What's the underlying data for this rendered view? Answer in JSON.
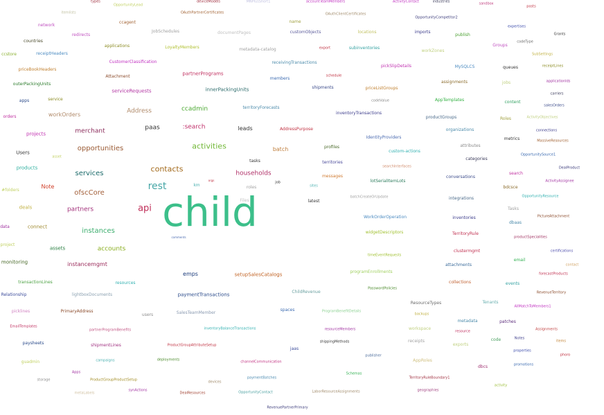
{
  "words": [
    {
      "text": "child",
      "color": "#3cbf8a"
    },
    {
      "text": "rest",
      "color": "#46a6a6"
    },
    {
      "text": "api",
      "color": "#c0305a"
    },
    {
      "text": "contacts",
      "color": "#a36a1c"
    },
    {
      "text": "activities",
      "color": "#72b838"
    },
    {
      "text": "opportunities",
      "color": "#9a5a34"
    },
    {
      "text": "services",
      "color": "#1b6a6a"
    },
    {
      "text": "ofscCore",
      "color": "#a3603a"
    },
    {
      "text": "instances",
      "color": "#3cae6e"
    },
    {
      "text": "partners",
      "color": "#a2307a"
    },
    {
      "text": "households",
      "color": "#b03068"
    },
    {
      "text": "paas",
      "color": "#333333"
    },
    {
      "text": ":search",
      "color": "#c0306a"
    },
    {
      "text": "ccadmin",
      "color": "#4aa830"
    },
    {
      "text": "merchant",
      "color": "#8a2a5a"
    },
    {
      "text": "Address",
      "color": "#b08a6a"
    },
    {
      "text": "leads",
      "color": "#333333"
    },
    {
      "text": "batch",
      "color": "#c08040"
    },
    {
      "text": "accounts",
      "color": "#8aae20"
    },
    {
      "text": "instancemgmt",
      "color": "#9a2a5a"
    },
    {
      "text": "emps",
      "color": "#1a3a7a"
    },
    {
      "text": "Note",
      "color": "#d0402a"
    },
    {
      "text": "serviceRequests",
      "color": "#b030a0"
    },
    {
      "text": "workOrders",
      "color": "#b08a6a"
    },
    {
      "text": "projects",
      "color": "#c030b0"
    },
    {
      "text": "Users",
      "color": "#333333"
    },
    {
      "text": "products",
      "color": "#30b0a0"
    },
    {
      "text": "deals",
      "color": "#c0b040"
    },
    {
      "text": "connect",
      "color": "#a08a30"
    },
    {
      "text": "assets",
      "color": "#207a3a"
    },
    {
      "text": "monitoring",
      "color": "#4a6a2a"
    },
    {
      "text": "setupSalesCatalogs",
      "color": "#c06020"
    },
    {
      "text": "paymentTransactions",
      "color": "#2a4a8a"
    },
    {
      "text": "innerPackingUnits",
      "color": "#2a6a6a"
    },
    {
      "text": "partnerPrograms",
      "color": "#c03060"
    },
    {
      "text": "CustomerClassification",
      "color": "#c030c0"
    },
    {
      "text": "applications",
      "color": "#8a8a20"
    },
    {
      "text": "LoyaltyMembers",
      "color": "#b0c030"
    },
    {
      "text": "receivingTransactions",
      "color": "#4a8aaa"
    },
    {
      "text": "shipments",
      "color": "#3a4a8a"
    },
    {
      "text": "priceListGroups",
      "color": "#c08030"
    },
    {
      "text": "pickSlipDetails",
      "color": "#c030b0"
    },
    {
      "text": "subinventories",
      "color": "#30a0a0"
    },
    {
      "text": "customObjects",
      "color": "#5a5a9a"
    },
    {
      "text": "territoryForecasts",
      "color": "#4a8aaa"
    },
    {
      "text": "inventoryTransactions",
      "color": "#3a3a8a"
    },
    {
      "text": "AddressPurpose",
      "color": "#c03040"
    },
    {
      "text": "profiles",
      "color": "#4a6a2a"
    },
    {
      "text": "territories",
      "color": "#4a4a9a"
    },
    {
      "text": "messages",
      "color": "#d07a30"
    },
    {
      "text": "lotSerialItemLots",
      "color": "#2a7a5a"
    },
    {
      "text": "searchInterfaces",
      "color": "#d08a6a"
    },
    {
      "text": "custom-actions",
      "color": "#30b0b0"
    },
    {
      "text": "IdentityProviders",
      "color": "#4a6ab0"
    },
    {
      "text": "WorkOrderOperation",
      "color": "#4a8ac0"
    },
    {
      "text": "widgetDescriptors",
      "color": "#a0c030"
    },
    {
      "text": "timeEventRequests",
      "color": "#a0c030"
    },
    {
      "text": "programEnrollments",
      "color": "#a0d060"
    },
    {
      "text": "PasswordPolicies",
      "color": "#4a8a2a"
    },
    {
      "text": "ChildRevenue",
      "color": "#6aa0a0"
    },
    {
      "text": "ProgramBenefitDetails",
      "color": "#8ad090"
    },
    {
      "text": "resourceMembers",
      "color": "#a030a0"
    },
    {
      "text": "shippingMethods",
      "color": "#333333"
    },
    {
      "text": "publisher",
      "color": "#4a6a9a"
    },
    {
      "text": "Schemas",
      "color": "#30b050"
    },
    {
      "text": "paymentBatches",
      "color": "#4a8ab0"
    },
    {
      "text": "channelCommunication",
      "color": "#c03080"
    },
    {
      "text": "deployments",
      "color": "#4a8a2a"
    },
    {
      "text": "devices",
      "color": "#a08a6a"
    },
    {
      "text": "campaigns",
      "color": "#4ab0b0"
    },
    {
      "text": "Apps",
      "color": "#a030a0"
    },
    {
      "text": "ProductGroupProductSetup",
      "color": "#a08a20"
    },
    {
      "text": "synActions",
      "color": "#a030a0"
    },
    {
      "text": "DealResources",
      "color": "#a04030"
    },
    {
      "text": "OpportunityContact",
      "color": "#4aa0a0"
    },
    {
      "text": "LaborResourceAssignments",
      "color": "#a08a6a"
    },
    {
      "text": "RevenuePartnerPrimary",
      "color": "#3a3a7a"
    },
    {
      "text": "inventoryBalanceTransactions",
      "color": "#30b0b0"
    },
    {
      "text": "ProductGroupAttributeSetup",
      "color": "#c03040"
    },
    {
      "text": "SalesTeamMember",
      "color": "#8a9ab0"
    },
    {
      "text": "users",
      "color": "#8a8a8a"
    },
    {
      "text": "PrimaryAddress",
      "color": "#8a4a2a"
    },
    {
      "text": "partnerProgramBenefits",
      "color": "#c05080"
    },
    {
      "text": "shipmentLines",
      "color": "#a03080"
    },
    {
      "text": "lightboxDocuments",
      "color": "#8aa0b0"
    },
    {
      "text": "resources",
      "color": "#30b0b0"
    },
    {
      "text": "transactionLines",
      "color": "#4aa040"
    },
    {
      "text": "Relationship",
      "color": "#3a4a9a"
    },
    {
      "text": "picklines",
      "color": "#d080c0"
    },
    {
      "text": "EmailTemplates",
      "color": "#c03060"
    },
    {
      "text": "paysheets",
      "color": "#2a4a8a"
    },
    {
      "text": "guadmin",
      "color": "#c0d060"
    },
    {
      "text": "storage",
      "color": "#8a8a8a"
    },
    {
      "text": "metaLabels",
      "color": "#d0c0a0"
    },
    {
      "text": "spaces",
      "color": "#3a6ab0"
    },
    {
      "text": "jaas",
      "color": "#3a4a9a"
    },
    {
      "text": "ResourceTypes",
      "color": "#6a6a6a"
    },
    {
      "text": "backups",
      "color": "#c0b040"
    },
    {
      "text": "workspace",
      "color": "#c0d080"
    },
    {
      "text": "receipts",
      "color": "#a0a0a0"
    },
    {
      "text": "AppRoles",
      "color": "#d0c080"
    },
    {
      "text": "TerritoryRuleBoundary1",
      "color": "#a03040"
    },
    {
      "text": "geographies",
      "color": "#a04080"
    },
    {
      "text": "exports",
      "color": "#c0d080"
    },
    {
      "text": "metadata",
      "color": "#4a8aaa"
    },
    {
      "text": "Tenants",
      "color": "#6ab0b0"
    },
    {
      "text": "resource",
      "color": "#c03060"
    },
    {
      "text": "code",
      "color": "#4aa060"
    },
    {
      "text": "dbcs",
      "color": "#a03070"
    },
    {
      "text": "patches",
      "color": "#5a2a7a"
    },
    {
      "text": "Notes",
      "color": "#3a3a8a"
    },
    {
      "text": "properties",
      "color": "#3a4aaa"
    },
    {
      "text": "promotions",
      "color": "#3a6ab0"
    },
    {
      "text": "activity",
      "color": "#a0c040"
    },
    {
      "text": "Assignments",
      "color": "#c04040"
    },
    {
      "text": "items",
      "color": "#c08030"
    },
    {
      "text": "phoro",
      "color": "#c03040"
    },
    {
      "text": "collections",
      "color": "#c06030"
    },
    {
      "text": "events",
      "color": "#30a0a0"
    },
    {
      "text": "attachments",
      "color": "#3a6a9a"
    },
    {
      "text": "clustermgmt",
      "color": "#c03050"
    },
    {
      "text": "RevenueTerritory",
      "color": "#8a4a2a"
    },
    {
      "text": "AllMatchToMembers1",
      "color": "#c030c0"
    },
    {
      "text": "forecastProducts",
      "color": "#c03050"
    },
    {
      "text": "contact",
      "color": "#d0a060"
    },
    {
      "text": "email",
      "color": "#30b050"
    },
    {
      "text": "certifications",
      "color": "#4a4aaa"
    },
    {
      "text": "productSpecialities",
      "color": "#a03060"
    },
    {
      "text": "inventories",
      "color": "#3a3a8a"
    },
    {
      "text": "TerritoryRule",
      "color": "#c03050"
    },
    {
      "text": "dbaas",
      "color": "#4a8aaa"
    },
    {
      "text": "PictureAttachment",
      "color": "#8a4a2a"
    },
    {
      "text": "Tasks",
      "color": "#a0a0a0"
    },
    {
      "text": "integrations",
      "color": "#4a6a8a"
    },
    {
      "text": "OpportunityResource",
      "color": "#30b0b0"
    },
    {
      "text": "bdcsce",
      "color": "#8a6a2a"
    },
    {
      "text": "conversations",
      "color": "#3a4a8a"
    },
    {
      "text": "search",
      "color": "#c030a0"
    },
    {
      "text": "ActivityAssignee",
      "color": "#a030a0"
    },
    {
      "text": "DealProduct",
      "color": "#3a3a7a"
    },
    {
      "text": "categories",
      "color": "#3a3a5a"
    },
    {
      "text": "OpportunitySource1",
      "color": "#3a6ab0"
    },
    {
      "text": "attributes",
      "color": "#8a8a8a"
    },
    {
      "text": "metrics",
      "color": "#333333"
    },
    {
      "text": "MassiveResources",
      "color": "#a06030"
    },
    {
      "text": "organizations",
      "color": "#4a8aaa"
    },
    {
      "text": "connections",
      "color": "#3a3a8a"
    },
    {
      "text": "Roles",
      "color": "#a0a040"
    },
    {
      "text": "ActivityObjectives",
      "color": "#c0d080"
    },
    {
      "text": "productGroups",
      "color": "#4a6a8a"
    },
    {
      "text": "content",
      "color": "#30a060"
    },
    {
      "text": "salesOrders",
      "color": "#3a4a8a"
    },
    {
      "text": "carriers",
      "color": "#3a3a5a"
    },
    {
      "text": "AppTemplates",
      "color": "#30b040"
    },
    {
      "text": "codeValue",
      "color": "#8a8a8a"
    },
    {
      "text": "jobs",
      "color": "#c0d080"
    },
    {
      "text": "applicationIds",
      "color": "#a030a0"
    },
    {
      "text": "assignments",
      "color": "#8a6a2a"
    },
    {
      "text": "queues",
      "color": "#333333"
    },
    {
      "text": "MySQLCS",
      "color": "#4a8ac0"
    },
    {
      "text": "receiptLines",
      "color": "#8a8a20"
    },
    {
      "text": "SubSettings",
      "color": "#c0b040"
    },
    {
      "text": "workZones",
      "color": "#c0d080"
    },
    {
      "text": "Groups",
      "color": "#c050c0"
    },
    {
      "text": "codeType",
      "color": "#6a6a6a"
    },
    {
      "text": "Grants",
      "color": "#333333"
    },
    {
      "text": "expertises",
      "color": "#3a4aaa"
    },
    {
      "text": "publish",
      "color": "#4aa030"
    },
    {
      "text": "imports",
      "color": "#3a3a8a"
    },
    {
      "text": "locations",
      "color": "#c0c060"
    },
    {
      "text": "OpportunityCompetitor2",
      "color": "#3a3a7a"
    },
    {
      "text": "posts",
      "color": "#c03040"
    },
    {
      "text": "sandbox",
      "color": "#c04080"
    },
    {
      "text": "industries",
      "color": "#3a3a5a"
    },
    {
      "text": "ActivityContact",
      "color": "#c030c0"
    },
    {
      "text": "OAuthClientCertificates",
      "color": "#a08a6a"
    },
    {
      "text": "accountTeamMembers",
      "color": "#c030c0"
    },
    {
      "text": "name",
      "color": "#a0a040"
    },
    {
      "text": "MNPlusShort1",
      "color": "#c0c0e0"
    },
    {
      "text": "deviceModels",
      "color": "#a03040"
    },
    {
      "text": "OAuthPartnerCertificates",
      "color": "#a06030"
    },
    {
      "text": "OpportunityLead",
      "color": "#c0d060"
    },
    {
      "text": "types",
      "color": "#a03040"
    },
    {
      "text": "itemlists",
      "color": "#c0c0a0"
    },
    {
      "text": "network",
      "color": "#c050c0"
    },
    {
      "text": "redirects",
      "color": "#c050c0"
    },
    {
      "text": "ccagent",
      "color": "#a06030"
    },
    {
      "text": "JobSchedules",
      "color": "#a0a0a0"
    },
    {
      "text": "documentPages",
      "color": "#c0c0c0"
    },
    {
      "text": "countries",
      "color": "#4a4a2a"
    },
    {
      "text": "receiptHeaders",
      "color": "#4a8ac0"
    },
    {
      "text": "ccstore",
      "color": "#8ab030"
    },
    {
      "text": "metadata-catalog",
      "color": "#a0a0a0"
    },
    {
      "text": "export",
      "color": "#c03040"
    },
    {
      "text": "priceBookHeaders",
      "color": "#c08030"
    },
    {
      "text": "Attachment",
      "color": "#8a4a2a"
    },
    {
      "text": "members",
      "color": "#3a6ab0"
    },
    {
      "text": "schedule",
      "color": "#c03040"
    },
    {
      "text": "outerPackingUnits",
      "color": "#2a7a2a"
    },
    {
      "text": "apps",
      "color": "#2a4a8a"
    },
    {
      "text": "service",
      "color": "#8a8a20"
    },
    {
      "text": "orders",
      "color": "#c030a0"
    },
    {
      "text": "asset",
      "color": "#c0d060"
    },
    {
      "text": "tasks",
      "color": "#333333"
    },
    {
      "text": "sites",
      "color": "#4ab0b0"
    },
    {
      "text": "roles",
      "color": "#a0a0a0"
    },
    {
      "text": "job",
      "color": "#333333"
    },
    {
      "text": "orgs",
      "color": "#c03040"
    },
    {
      "text": "km",
      "color": "#4ab0b0"
    },
    {
      "text": "#folders",
      "color": "#c0d060"
    },
    {
      "text": "data",
      "color": "#a030a0"
    },
    {
      "text": "project",
      "color": "#c0d060"
    },
    {
      "text": "batchCreateOrUpdate",
      "color": "#a0a0a0"
    },
    {
      "text": "latest",
      "color": "#333333"
    },
    {
      "text": "Files",
      "color": "#c0c0c0"
    },
    {
      "text": "comments",
      "color": "#4a6ab0"
    }
  ]
}
